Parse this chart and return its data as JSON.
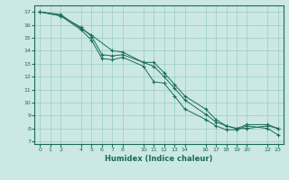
{
  "xlabel": "Humidex (Indice chaleur)",
  "bg_color": "#cce8e4",
  "grid_color": "#99ccc6",
  "line_color": "#1a6b5a",
  "xlim": [
    -0.5,
    23.5
  ],
  "ylim": [
    6.8,
    17.5
  ],
  "xticks": [
    0,
    1,
    2,
    4,
    5,
    6,
    7,
    8,
    10,
    11,
    12,
    13,
    14,
    16,
    17,
    18,
    19,
    20,
    22,
    23
  ],
  "yticks": [
    7,
    8,
    9,
    10,
    11,
    12,
    13,
    14,
    15,
    16,
    17
  ],
  "line1_x": [
    0,
    2,
    4,
    5,
    6,
    7,
    8,
    10,
    11,
    12,
    13,
    14,
    16,
    17,
    18,
    19,
    20,
    22,
    23
  ],
  "line1_y": [
    17.0,
    16.7,
    15.6,
    14.8,
    13.4,
    13.3,
    13.5,
    12.8,
    11.6,
    11.5,
    10.5,
    9.5,
    8.7,
    8.2,
    7.9,
    7.9,
    8.2,
    8.0,
    7.5
  ],
  "line2_x": [
    0,
    2,
    4,
    5,
    6,
    7,
    8,
    10,
    11,
    12,
    13,
    14,
    16,
    17,
    18,
    19,
    20,
    22,
    23
  ],
  "line2_y": [
    17.0,
    16.7,
    15.8,
    15.1,
    13.7,
    13.6,
    13.7,
    13.1,
    13.1,
    12.3,
    11.4,
    10.5,
    9.5,
    8.7,
    8.2,
    8.0,
    8.0,
    8.2,
    8.0
  ],
  "line3_x": [
    0,
    2,
    4,
    5,
    7,
    8,
    10,
    11,
    12,
    13,
    14,
    16,
    17,
    18,
    19,
    20,
    22,
    23
  ],
  "line3_y": [
    17.0,
    16.8,
    15.7,
    15.2,
    14.0,
    13.9,
    13.1,
    12.8,
    12.0,
    11.1,
    10.2,
    9.1,
    8.5,
    8.2,
    8.0,
    8.3,
    8.3,
    8.0
  ]
}
